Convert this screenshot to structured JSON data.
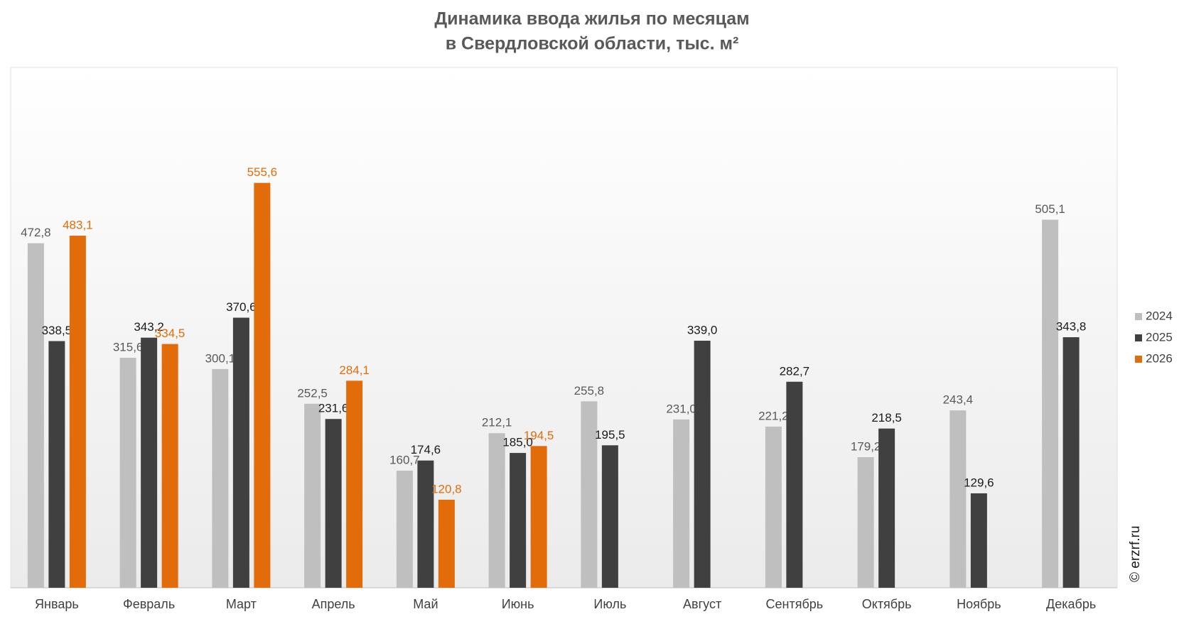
{
  "chart_data": {
    "type": "bar",
    "title": [
      "Динамика ввода жилья по месяцам",
      "в Свердловской области, тыс. м²"
    ],
    "categories": [
      "Январь",
      "Февраль",
      "Март",
      "Апрель",
      "Май",
      "Июнь",
      "Июль",
      "Август",
      "Сентябрь",
      "Октябрь",
      "Ноябрь",
      "Декабрь"
    ],
    "series": [
      {
        "name": "2024",
        "color": "#bfbfbf",
        "label_color": "#595959",
        "values": [
          472.8,
          315.6,
          300.1,
          252.5,
          160.7,
          212.1,
          255.8,
          231.0,
          221.2,
          179.2,
          243.4,
          505.1
        ],
        "value_labels": [
          "472,8",
          "315,6",
          "300,1",
          "252,5",
          "160,7",
          "212,1",
          "255,8",
          "231,0",
          "221,2",
          "179,2",
          "243,4",
          "505,1"
        ]
      },
      {
        "name": "2025",
        "color": "#404040",
        "label_color": "#1a1a1a",
        "values": [
          338.5,
          343.2,
          370.6,
          231.6,
          174.6,
          185.0,
          195.5,
          339.0,
          282.7,
          218.5,
          129.6,
          343.8
        ],
        "value_labels": [
          "338,5",
          "343,2",
          "370,6",
          "231,6",
          "174,6",
          "185,0",
          "195,5",
          "339,0",
          "282,7",
          "218,5",
          "129,6",
          "343,8"
        ]
      },
      {
        "name": "2026",
        "color": "#e36c0a",
        "label_color": "#e36c0a",
        "values": [
          483.1,
          334.5,
          555.6,
          284.1,
          120.8,
          194.5,
          null,
          null,
          null,
          null,
          null,
          null
        ],
        "value_labels": [
          "483,1",
          "334,5",
          "555,6",
          "284,1",
          "120,8",
          "194,5",
          null,
          null,
          null,
          null,
          null,
          null
        ]
      }
    ],
    "ylim": [
      0,
      714
    ],
    "grid": false,
    "legend": "right",
    "source": "© erzrf.ru"
  }
}
